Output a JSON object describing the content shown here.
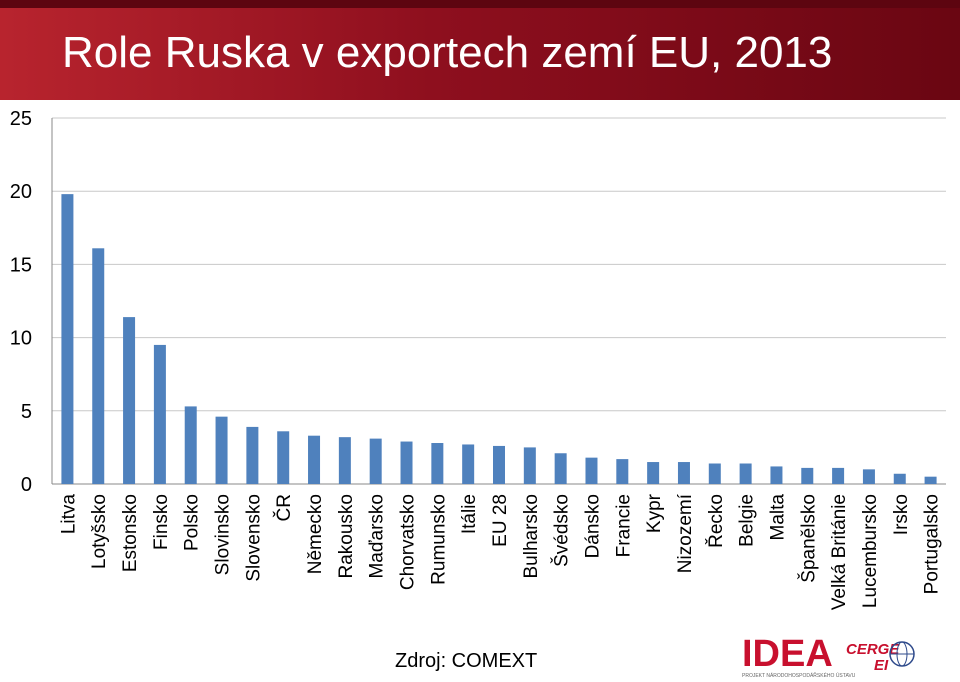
{
  "header": {
    "title": "Role Ruska v exportech zemí EU, 2013"
  },
  "source": "Zdroj: COMEXT",
  "logo": {
    "main": "IDEA",
    "sub": "CERGE",
    "sub2": "EI",
    "tagline": "PROJEKT NÁRODOHOSPODÁŘSKÉHO ÚSTAVU"
  },
  "colors": {
    "bar": "#4f81bd",
    "header": "#8e0f1e",
    "logo_red": "#c8102e",
    "logo_blue": "#2e4a8b"
  },
  "chart_data": {
    "type": "bar",
    "title": "Role Ruska v exportech zemí EU, 2013",
    "xlabel": "",
    "ylabel": "",
    "ylim": [
      0,
      25
    ],
    "yticks": [
      0,
      5,
      10,
      15,
      20,
      25
    ],
    "grid": true,
    "categories": [
      "Litva",
      "Lotyšsko",
      "Estonsko",
      "Finsko",
      "Polsko",
      "Slovinsko",
      "Slovensko",
      "ČR",
      "Německo",
      "Rakousko",
      "Maďarsko",
      "Chorvatsko",
      "Rumunsko",
      "Itálie",
      "EU 28",
      "Bulharsko",
      "Švédsko",
      "Dánsko",
      "Francie",
      "Kypr",
      "Nizozemí",
      "Řecko",
      "Belgie",
      "Malta",
      "Španělsko",
      "Velká Británie",
      "Lucembursko",
      "Irsko",
      "Portugalsko"
    ],
    "values": [
      19.8,
      16.1,
      11.4,
      9.5,
      5.3,
      4.6,
      3.9,
      3.6,
      3.3,
      3.2,
      3.1,
      2.9,
      2.8,
      2.7,
      2.6,
      2.5,
      2.1,
      1.8,
      1.7,
      1.5,
      1.5,
      1.4,
      1.4,
      1.2,
      1.1,
      1.1,
      1.0,
      0.7,
      0.5
    ]
  }
}
